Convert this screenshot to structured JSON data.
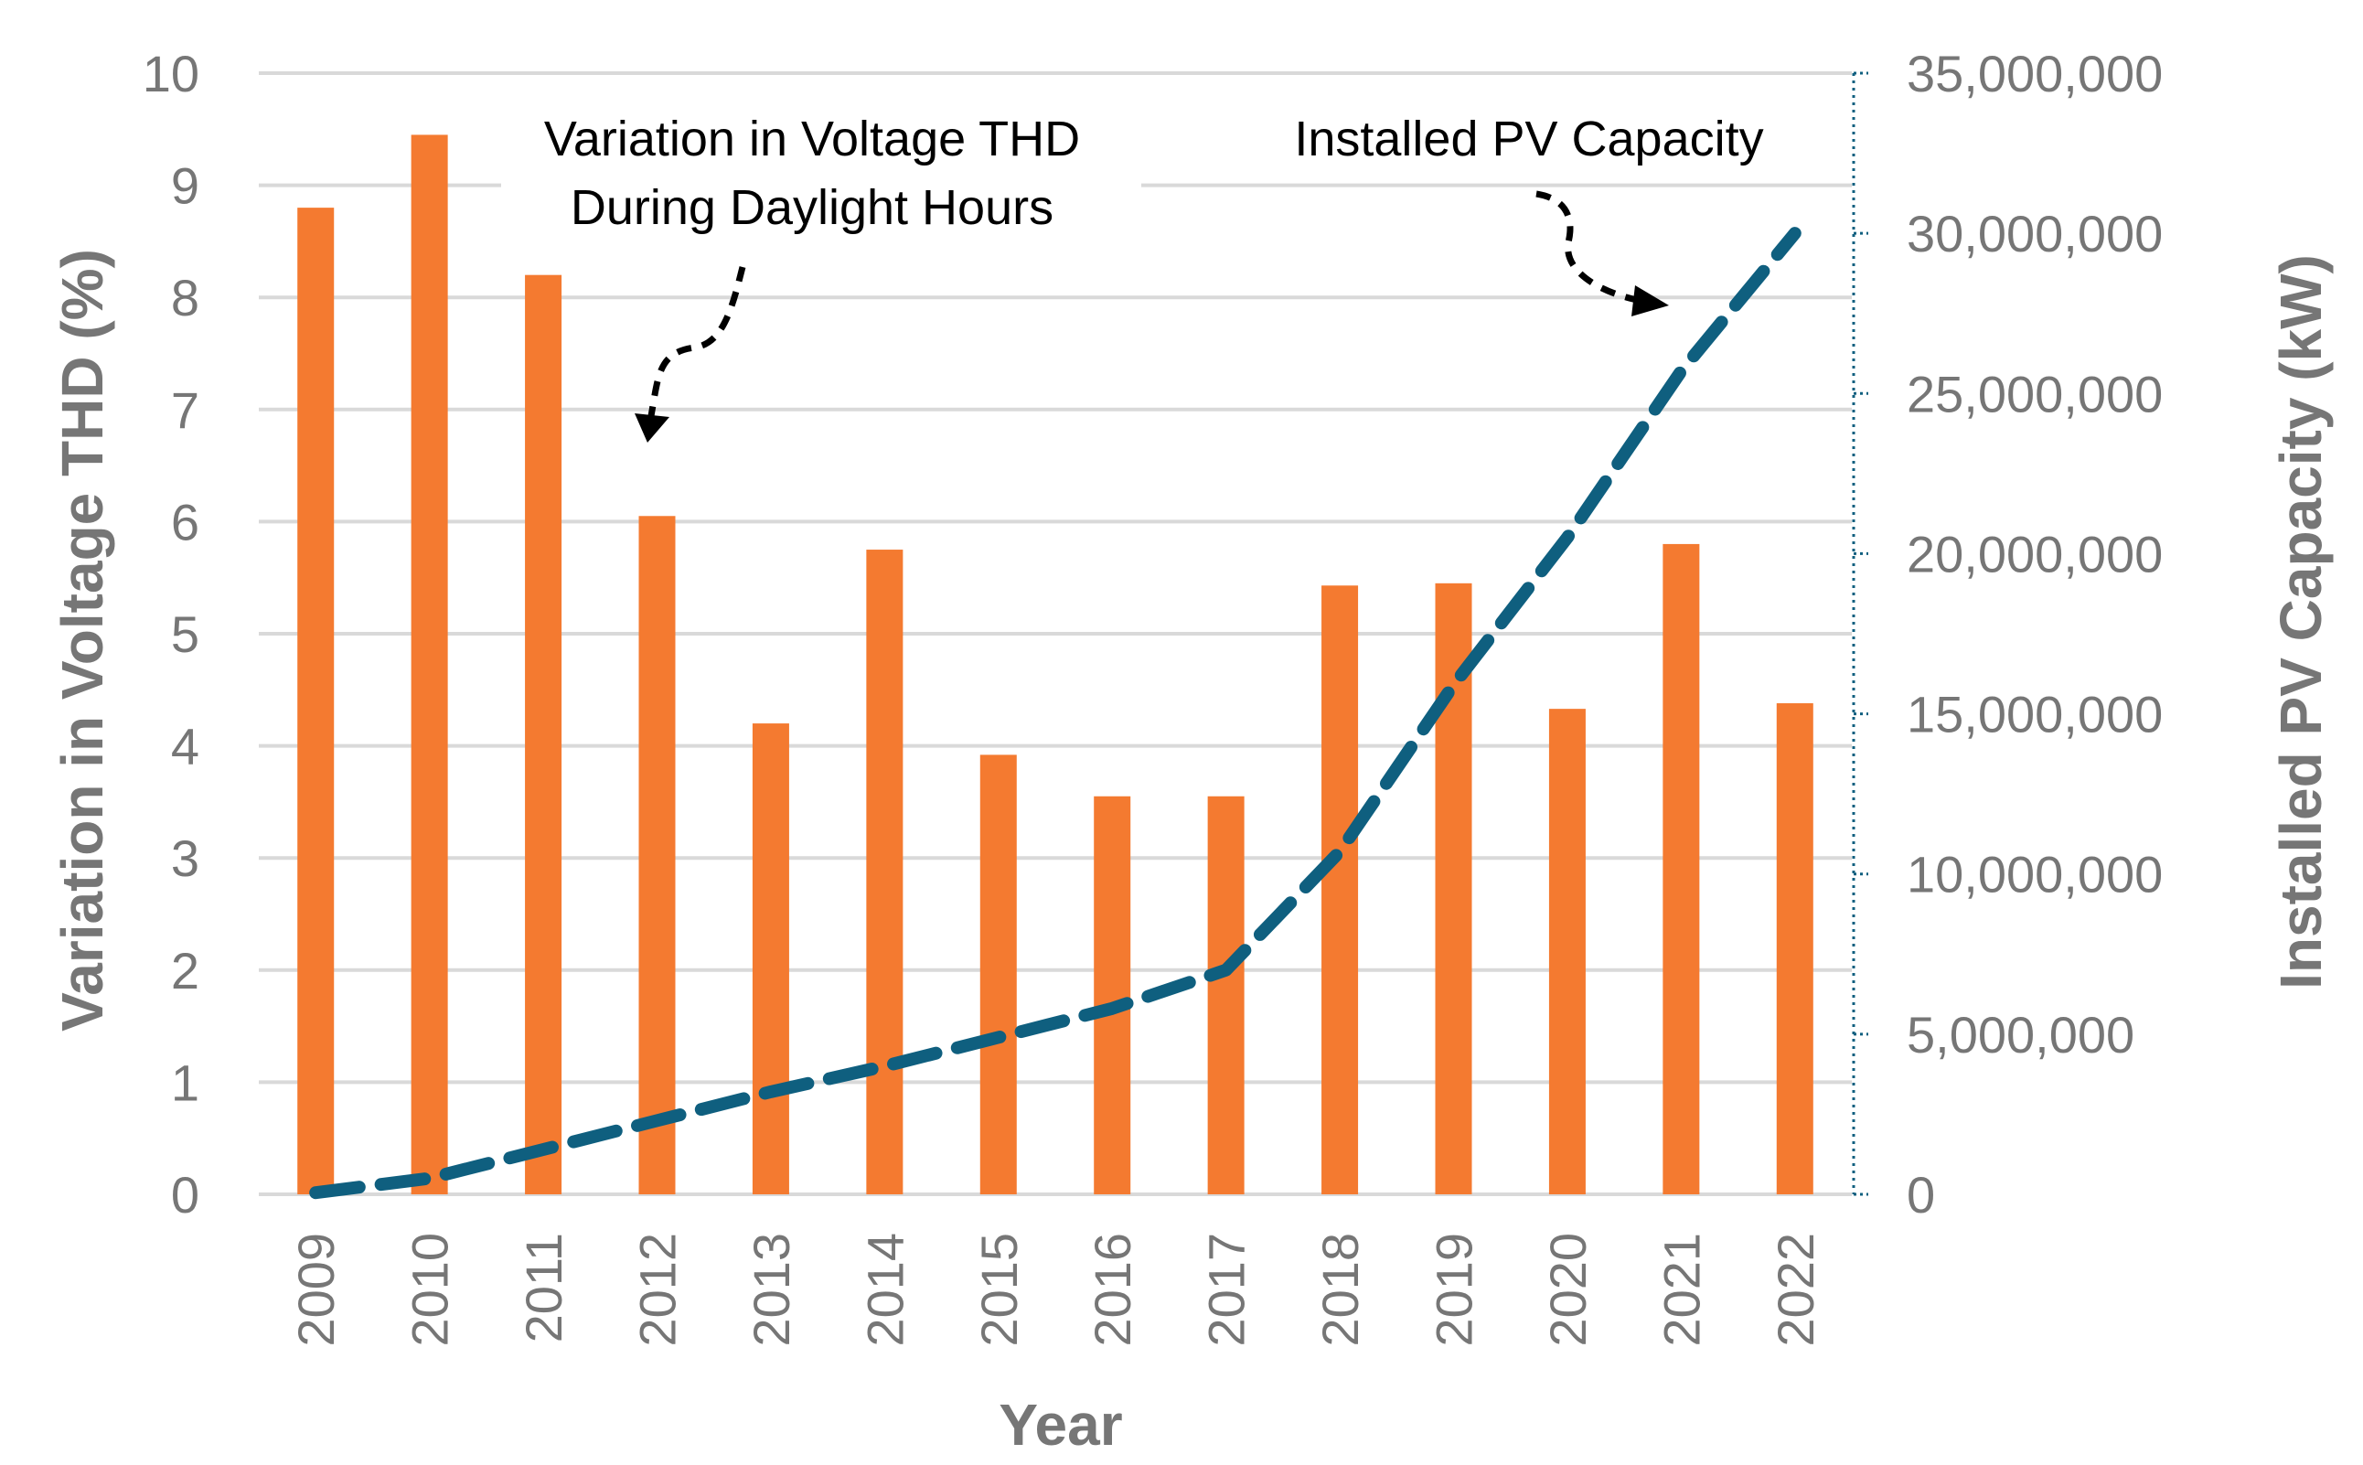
{
  "chart_data": {
    "type": "bar+line",
    "categories": [
      "2009",
      "2010",
      "2011",
      "2012",
      "2013",
      "2014",
      "2015",
      "2016",
      "2017",
      "2018",
      "2019",
      "2020",
      "2021",
      "2022"
    ],
    "series": [
      {
        "name": "Variation in Voltage THD During Daylight Hours",
        "type": "bar",
        "axis": "left",
        "color": "#f47a30",
        "values": [
          8.8,
          9.45,
          8.2,
          6.05,
          4.2,
          5.75,
          3.92,
          3.55,
          3.55,
          5.43,
          5.45,
          4.33,
          5.8,
          4.38
        ]
      },
      {
        "name": "Installed PV Capacity",
        "type": "line",
        "style": "dashed",
        "axis": "right",
        "color": "#0f5f7f",
        "values": [
          50000,
          500000,
          1400000,
          2300000,
          3200000,
          4000000,
          4900000,
          5800000,
          7000000,
          10700000,
          15900000,
          20500000,
          25700000,
          30000000
        ]
      }
    ],
    "xlabel": "Year",
    "ylabel_left": "Variation in Voltage THD (%)",
    "ylabel_right": "Installed PV Capacity (kW)",
    "ylim_left": [
      0,
      10
    ],
    "yticks_left": [
      "0",
      "1",
      "2",
      "3",
      "4",
      "5",
      "6",
      "7",
      "8",
      "9",
      "10"
    ],
    "ylim_right": [
      0,
      35000000
    ],
    "yticks_right": [
      "0",
      "5,000,000",
      "10,000,000",
      "15,000,000",
      "20,000,000",
      "25,000,000",
      "30,000,000",
      "35,000,000"
    ],
    "grid": true,
    "annotations": {
      "thd_line1": "Variation in Voltage THD",
      "thd_line2": "During Daylight Hours",
      "pv": "Installed PV Capacity"
    }
  }
}
